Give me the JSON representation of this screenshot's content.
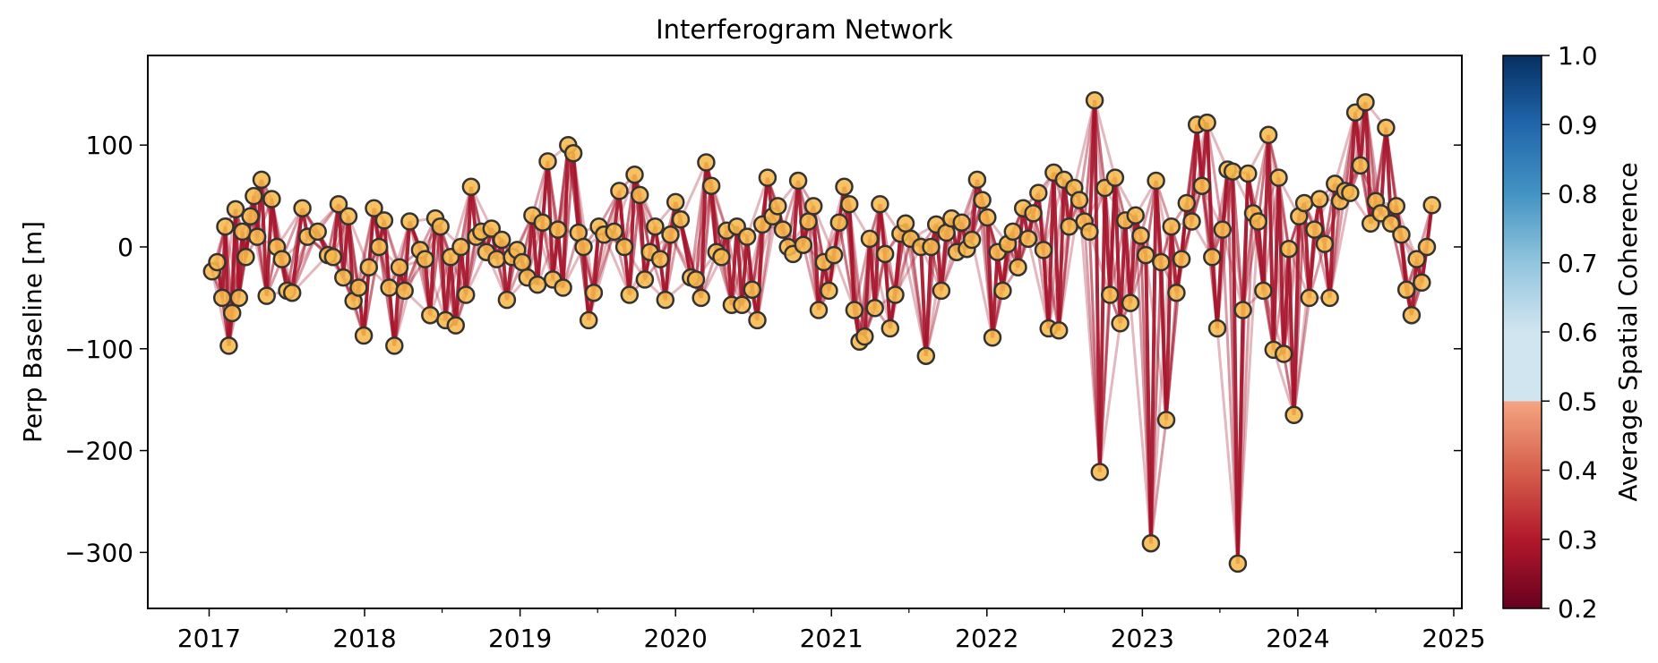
{
  "chart_data": {
    "type": "scatter",
    "title": "Interferogram Network",
    "xlabel": "",
    "ylabel": "Perp Baseline [m]",
    "xlim": [
      "2016-08-10",
      "2025-01-20"
    ],
    "ylim": [
      -355,
      188
    ],
    "x_ticks": [
      "2017",
      "2018",
      "2019",
      "2020",
      "2021",
      "2022",
      "2023",
      "2024",
      "2025"
    ],
    "y_ticks": [
      100,
      0,
      -100,
      -200,
      -300
    ],
    "y_tick_labels": [
      "100",
      "0",
      "−100",
      "−200",
      "−300"
    ],
    "grid": false,
    "colorbar": {
      "label": "Average Spatial Coherence",
      "range": [
        0.2,
        1.0
      ],
      "ticks": [
        "1.0",
        "0.9",
        "0.8",
        "0.7",
        "0.6",
        "0.5",
        "0.4",
        "0.3",
        "0.2"
      ],
      "data_range": [
        0.25,
        0.45
      ]
    },
    "colors": {
      "edge": "#a5132a",
      "marker_fill": "#f7b84b",
      "marker_edge": "#333333"
    },
    "points": [
      [
        "2017-01-08",
        -24
      ],
      [
        "2017-01-20",
        -15
      ],
      [
        "2017-02-01",
        -50
      ],
      [
        "2017-02-08",
        20
      ],
      [
        "2017-02-16",
        -97
      ],
      [
        "2017-02-24",
        -65
      ],
      [
        "2017-03-04",
        37
      ],
      [
        "2017-03-12",
        -50
      ],
      [
        "2017-03-20",
        15
      ],
      [
        "2017-03-28",
        -10
      ],
      [
        "2017-04-08",
        30
      ],
      [
        "2017-04-16",
        50
      ],
      [
        "2017-04-24",
        10
      ],
      [
        "2017-05-04",
        66
      ],
      [
        "2017-05-16",
        -48
      ],
      [
        "2017-05-28",
        47
      ],
      [
        "2017-06-09",
        0
      ],
      [
        "2017-06-21",
        -12
      ],
      [
        "2017-07-03",
        -43
      ],
      [
        "2017-07-15",
        -45
      ],
      [
        "2017-08-08",
        38
      ],
      [
        "2017-08-20",
        10
      ],
      [
        "2017-09-13",
        15
      ],
      [
        "2017-10-07",
        -8
      ],
      [
        "2017-10-19",
        -10
      ],
      [
        "2017-11-01",
        42
      ],
      [
        "2017-11-12",
        -30
      ],
      [
        "2017-11-24",
        30
      ],
      [
        "2017-12-06",
        -53
      ],
      [
        "2017-12-18",
        -40
      ],
      [
        "2017-12-30",
        -87
      ],
      [
        "2018-01-11",
        -20
      ],
      [
        "2018-01-23",
        38
      ],
      [
        "2018-02-04",
        0
      ],
      [
        "2018-02-16",
        26
      ],
      [
        "2018-02-28",
        -40
      ],
      [
        "2018-03-12",
        -97
      ],
      [
        "2018-03-24",
        -20
      ],
      [
        "2018-04-05",
        -43
      ],
      [
        "2018-04-17",
        25
      ],
      [
        "2018-05-11",
        -3
      ],
      [
        "2018-05-23",
        -12
      ],
      [
        "2018-06-04",
        -67
      ],
      [
        "2018-06-16",
        28
      ],
      [
        "2018-06-28",
        20
      ],
      [
        "2018-07-10",
        -72
      ],
      [
        "2018-07-22",
        -10
      ],
      [
        "2018-08-03",
        -77
      ],
      [
        "2018-08-15",
        0
      ],
      [
        "2018-08-27",
        -47
      ],
      [
        "2018-09-08",
        59
      ],
      [
        "2018-09-20",
        10
      ],
      [
        "2018-10-02",
        15
      ],
      [
        "2018-10-14",
        -5
      ],
      [
        "2018-10-26",
        18
      ],
      [
        "2018-11-07",
        -12
      ],
      [
        "2018-11-19",
        7
      ],
      [
        "2018-12-01",
        -52
      ],
      [
        "2018-12-13",
        -10
      ],
      [
        "2018-12-25",
        -3
      ],
      [
        "2019-01-06",
        -15
      ],
      [
        "2019-01-18",
        -30
      ],
      [
        "2019-01-30",
        31
      ],
      [
        "2019-02-11",
        -37
      ],
      [
        "2019-02-23",
        24
      ],
      [
        "2019-03-07",
        84
      ],
      [
        "2019-03-19",
        -32
      ],
      [
        "2019-03-31",
        17
      ],
      [
        "2019-04-12",
        -40
      ],
      [
        "2019-04-24",
        100
      ],
      [
        "2019-05-06",
        92
      ],
      [
        "2019-05-18",
        14
      ],
      [
        "2019-05-30",
        0
      ],
      [
        "2019-06-11",
        -72
      ],
      [
        "2019-06-23",
        -45
      ],
      [
        "2019-07-05",
        20
      ],
      [
        "2019-07-17",
        12
      ],
      [
        "2019-08-10",
        15
      ],
      [
        "2019-08-22",
        55
      ],
      [
        "2019-09-03",
        0
      ],
      [
        "2019-09-15",
        -47
      ],
      [
        "2019-09-27",
        71
      ],
      [
        "2019-10-09",
        51
      ],
      [
        "2019-10-21",
        -32
      ],
      [
        "2019-11-02",
        -5
      ],
      [
        "2019-11-14",
        20
      ],
      [
        "2019-11-26",
        -12
      ],
      [
        "2019-12-08",
        -52
      ],
      [
        "2019-12-20",
        12
      ],
      [
        "2020-01-01",
        44
      ],
      [
        "2020-01-13",
        27
      ],
      [
        "2020-02-06",
        -30
      ],
      [
        "2020-02-18",
        -32
      ],
      [
        "2020-03-01",
        -50
      ],
      [
        "2020-03-13",
        83
      ],
      [
        "2020-03-25",
        60
      ],
      [
        "2020-04-06",
        -5
      ],
      [
        "2020-04-18",
        -10
      ],
      [
        "2020-04-30",
        16
      ],
      [
        "2020-05-12",
        -57
      ],
      [
        "2020-05-24",
        20
      ],
      [
        "2020-06-05",
        -57
      ],
      [
        "2020-06-17",
        10
      ],
      [
        "2020-06-29",
        -42
      ],
      [
        "2020-07-11",
        -72
      ],
      [
        "2020-07-23",
        22
      ],
      [
        "2020-08-04",
        68
      ],
      [
        "2020-08-16",
        30
      ],
      [
        "2020-08-28",
        40
      ],
      [
        "2020-09-09",
        17
      ],
      [
        "2020-09-21",
        0
      ],
      [
        "2020-10-03",
        -7
      ],
      [
        "2020-10-15",
        65
      ],
      [
        "2020-10-27",
        2
      ],
      [
        "2020-11-08",
        25
      ],
      [
        "2020-11-20",
        40
      ],
      [
        "2020-12-02",
        -62
      ],
      [
        "2020-12-14",
        -15
      ],
      [
        "2020-12-26",
        -43
      ],
      [
        "2021-01-07",
        -8
      ],
      [
        "2021-01-19",
        24
      ],
      [
        "2021-01-31",
        59
      ],
      [
        "2021-02-12",
        42
      ],
      [
        "2021-02-24",
        -62
      ],
      [
        "2021-03-08",
        -93
      ],
      [
        "2021-03-20",
        -88
      ],
      [
        "2021-04-01",
        8
      ],
      [
        "2021-04-13",
        -60
      ],
      [
        "2021-04-25",
        42
      ],
      [
        "2021-05-07",
        -7
      ],
      [
        "2021-05-19",
        -80
      ],
      [
        "2021-05-31",
        -47
      ],
      [
        "2021-06-12",
        13
      ],
      [
        "2021-06-24",
        23
      ],
      [
        "2021-07-06",
        8
      ],
      [
        "2021-07-30",
        0
      ],
      [
        "2021-08-11",
        -107
      ],
      [
        "2021-08-23",
        0
      ],
      [
        "2021-09-04",
        22
      ],
      [
        "2021-09-16",
        -43
      ],
      [
        "2021-09-28",
        14
      ],
      [
        "2021-10-10",
        28
      ],
      [
        "2021-10-22",
        -5
      ],
      [
        "2021-11-03",
        24
      ],
      [
        "2021-11-15",
        -2
      ],
      [
        "2021-11-27",
        7
      ],
      [
        "2021-12-09",
        66
      ],
      [
        "2021-12-21",
        46
      ],
      [
        "2022-01-02",
        29
      ],
      [
        "2022-01-14",
        -89
      ],
      [
        "2022-01-26",
        -5
      ],
      [
        "2022-02-07",
        -43
      ],
      [
        "2022-02-19",
        3
      ],
      [
        "2022-03-03",
        15
      ],
      [
        "2022-03-15",
        -20
      ],
      [
        "2022-03-27",
        38
      ],
      [
        "2022-04-08",
        8
      ],
      [
        "2022-04-20",
        33
      ],
      [
        "2022-05-02",
        53
      ],
      [
        "2022-05-14",
        -3
      ],
      [
        "2022-05-26",
        -80
      ],
      [
        "2022-06-07",
        73
      ],
      [
        "2022-06-19",
        -82
      ],
      [
        "2022-07-01",
        66
      ],
      [
        "2022-07-13",
        20
      ],
      [
        "2022-07-25",
        58
      ],
      [
        "2022-08-06",
        46
      ],
      [
        "2022-08-18",
        25
      ],
      [
        "2022-08-30",
        15
      ],
      [
        "2022-09-11",
        144
      ],
      [
        "2022-09-23",
        -221
      ],
      [
        "2022-10-05",
        58
      ],
      [
        "2022-10-17",
        -47
      ],
      [
        "2022-10-29",
        68
      ],
      [
        "2022-11-10",
        -75
      ],
      [
        "2022-11-22",
        26
      ],
      [
        "2022-12-04",
        -55
      ],
      [
        "2022-12-16",
        31
      ],
      [
        "2022-12-28",
        11
      ],
      [
        "2023-01-09",
        -8
      ],
      [
        "2023-01-21",
        -291
      ],
      [
        "2023-02-02",
        65
      ],
      [
        "2023-02-14",
        -15
      ],
      [
        "2023-02-26",
        -170
      ],
      [
        "2023-03-10",
        20
      ],
      [
        "2023-03-22",
        -45
      ],
      [
        "2023-04-03",
        -12
      ],
      [
        "2023-04-15",
        43
      ],
      [
        "2023-04-27",
        25
      ],
      [
        "2023-05-09",
        120
      ],
      [
        "2023-05-21",
        60
      ],
      [
        "2023-06-02",
        122
      ],
      [
        "2023-06-14",
        -10
      ],
      [
        "2023-06-26",
        -80
      ],
      [
        "2023-07-08",
        17
      ],
      [
        "2023-07-20",
        76
      ],
      [
        "2023-08-01",
        74
      ],
      [
        "2023-08-13",
        -311
      ],
      [
        "2023-08-25",
        -62
      ],
      [
        "2023-09-06",
        72
      ],
      [
        "2023-09-18",
        33
      ],
      [
        "2023-09-30",
        25
      ],
      [
        "2023-10-12",
        -43
      ],
      [
        "2023-10-24",
        110
      ],
      [
        "2023-11-05",
        -101
      ],
      [
        "2023-11-17",
        68
      ],
      [
        "2023-11-29",
        -105
      ],
      [
        "2023-12-11",
        -2
      ],
      [
        "2023-12-23",
        -165
      ],
      [
        "2024-01-04",
        30
      ],
      [
        "2024-01-16",
        43
      ],
      [
        "2024-01-28",
        -50
      ],
      [
        "2024-02-09",
        17
      ],
      [
        "2024-02-21",
        47
      ],
      [
        "2024-03-04",
        3
      ],
      [
        "2024-03-16",
        -50
      ],
      [
        "2024-03-28",
        62
      ],
      [
        "2024-04-09",
        45
      ],
      [
        "2024-04-21",
        55
      ],
      [
        "2024-05-03",
        53
      ],
      [
        "2024-05-15",
        132
      ],
      [
        "2024-05-27",
        80
      ],
      [
        "2024-06-08",
        142
      ],
      [
        "2024-06-20",
        23
      ],
      [
        "2024-07-02",
        45
      ],
      [
        "2024-07-14",
        33
      ],
      [
        "2024-07-26",
        117
      ],
      [
        "2024-08-07",
        23
      ],
      [
        "2024-08-19",
        40
      ],
      [
        "2024-08-31",
        12
      ],
      [
        "2024-09-12",
        -42
      ],
      [
        "2024-09-24",
        -67
      ],
      [
        "2024-10-06",
        -12
      ],
      [
        "2024-10-18",
        -35
      ],
      [
        "2024-10-30",
        0
      ],
      [
        "2024-11-11",
        41
      ]
    ]
  }
}
